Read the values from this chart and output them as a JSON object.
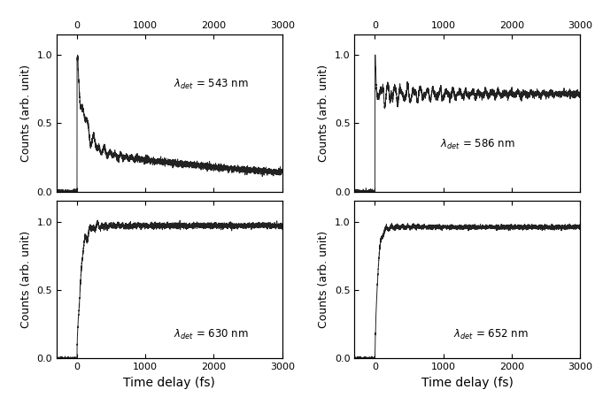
{
  "xlim": [
    -300,
    3000
  ],
  "ylim": [
    0.0,
    1.15
  ],
  "yticks": [
    0.0,
    0.5,
    1.0
  ],
  "xticks": [
    0,
    1000,
    2000,
    3000
  ],
  "xlabel": "Time delay (fs)",
  "ylabel": "Counts (arb. unit)",
  "line_color": "#222222",
  "line_width": 0.7,
  "background": "#ffffff",
  "label_543": "$\\lambda_{det}$ = 543 nm",
  "label_586": "$\\lambda_{det}$ = 586 nm",
  "label_630": "$\\lambda_{det}$ = 630 nm",
  "label_652": "$\\lambda_{det}$ = 652 nm",
  "fontsize_label": 8,
  "fontsize_tick": 8,
  "fontsize_axis": 9
}
